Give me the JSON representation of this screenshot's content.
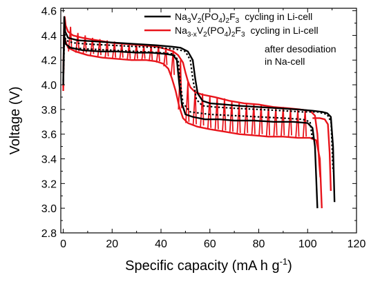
{
  "chart_data": {
    "type": "line",
    "xlabel": "Specific capacity (mA h g",
    "xlabel_sup": "-1",
    "xlabel_tail": ")",
    "ylabel": "Voltage (V)",
    "xlim": [
      -1,
      120
    ],
    "ylim": [
      2.8,
      4.62
    ],
    "x_ticks": [
      0,
      20,
      40,
      60,
      80,
      100,
      120
    ],
    "y_ticks": [
      2.8,
      3.0,
      3.2,
      3.4,
      3.6,
      3.8,
      4.0,
      4.2,
      4.4,
      4.6
    ],
    "x_tick_labels": [
      "0",
      "20",
      "40",
      "60",
      "80",
      "100",
      "120"
    ],
    "y_tick_labels": [
      "2.8",
      "3.0",
      "3.2",
      "3.4",
      "3.6",
      "3.8",
      "4.0",
      "4.2",
      "4.4",
      "4.6"
    ],
    "grid": false,
    "legend_position": "top-right",
    "legend": [
      {
        "color": "#000000",
        "formula": [
          {
            "t": "Na",
            "s": null
          },
          {
            "t": "3",
            "s": "sub"
          },
          {
            "t": "V",
            "s": null
          },
          {
            "t": "2",
            "s": "sub"
          },
          {
            "t": "(PO",
            "s": null
          },
          {
            "t": "4",
            "s": "sub"
          },
          {
            "t": ")",
            "s": null
          },
          {
            "t": "2",
            "s": "sub"
          },
          {
            "t": "F",
            "s": null
          },
          {
            "t": "3",
            "s": "sub"
          }
        ],
        "suffix": "cycling in Li-cell"
      },
      {
        "color": "#e8141b",
        "formula": [
          {
            "t": "Na",
            "s": null
          },
          {
            "t": "3-x",
            "s": "sub"
          },
          {
            "t": "V",
            "s": null
          },
          {
            "t": "2",
            "s": "sub"
          },
          {
            "t": "(PO",
            "s": null
          },
          {
            "t": "4",
            "s": "sub"
          },
          {
            "t": ")",
            "s": null
          },
          {
            "t": "2",
            "s": "sub"
          },
          {
            "t": "F",
            "s": null
          },
          {
            "t": "3",
            "s": "sub"
          }
        ],
        "suffix": "cycling in Li-cell",
        "extra_lines": [
          "after desodiation",
          "in Na-cell"
        ]
      }
    ],
    "series": [
      {
        "color": "#e8141b",
        "curves": [
          {
            "style": "solid",
            "points": [
              [
                0,
                3.98
              ],
              [
                0.3,
                4.45
              ],
              [
                0.6,
                4.55
              ],
              [
                1,
                4.48
              ],
              [
                2,
                4.43
              ],
              [
                4,
                4.4
              ],
              [
                8,
                4.38
              ],
              [
                14,
                4.36
              ],
              [
                20,
                4.34
              ],
              [
                26,
                4.33
              ],
              [
                32,
                4.32
              ],
              [
                38,
                4.31
              ],
              [
                42,
                4.29
              ],
              [
                45,
                4.27
              ],
              [
                47,
                4.24
              ],
              [
                49,
                4.18
              ],
              [
                50,
                4.1
              ],
              [
                51,
                4.03
              ],
              [
                52,
                3.98
              ],
              [
                54,
                3.94
              ],
              [
                57,
                3.92
              ],
              [
                62,
                3.9
              ],
              [
                68,
                3.87
              ],
              [
                74,
                3.85
              ],
              [
                80,
                3.84
              ],
              [
                86,
                3.82
              ],
              [
                92,
                3.81
              ],
              [
                97,
                3.8
              ],
              [
                101,
                3.79
              ],
              [
                103,
                3.75
              ],
              [
                104,
                3.6
              ],
              [
                104.8,
                3.35
              ],
              [
                105.2,
                3.25
              ]
            ]
          },
          {
            "style": "solid",
            "points": [
              [
                0,
                3.95
              ],
              [
                0.3,
                4.4
              ],
              [
                1,
                4.35
              ],
              [
                2,
                4.3
              ],
              [
                5,
                4.27
              ],
              [
                10,
                4.24
              ],
              [
                16,
                4.22
              ],
              [
                22,
                4.21
              ],
              [
                28,
                4.2
              ],
              [
                34,
                4.2
              ],
              [
                38,
                4.19
              ],
              [
                41,
                4.17
              ],
              [
                43,
                4.13
              ],
              [
                44.5,
                4.05
              ],
              [
                46,
                3.95
              ],
              [
                47.5,
                3.82
              ],
              [
                49,
                3.73
              ],
              [
                51,
                3.69
              ],
              [
                55,
                3.66
              ],
              [
                60,
                3.64
              ],
              [
                66,
                3.62
              ],
              [
                72,
                3.6
              ],
              [
                78,
                3.59
              ],
              [
                84,
                3.58
              ],
              [
                90,
                3.58
              ],
              [
                96,
                3.57
              ],
              [
                101,
                3.57
              ],
              [
                103.5,
                3.55
              ],
              [
                105,
                3.4
              ],
              [
                105.8,
                3.0
              ]
            ]
          },
          {
            "style": "solid",
            "points": [
              [
                102,
                3.73
              ],
              [
                105,
                3.73
              ],
              [
                107,
                3.72
              ],
              [
                108.3,
                3.68
              ],
              [
                109,
                3.45
              ],
              [
                109.5,
                3.14
              ]
            ]
          }
        ],
        "spikes": {
          "lower": [
            [
              3,
              4.27,
              4.47
            ],
            [
              6,
              4.26,
              4.42
            ],
            [
              9,
              4.25,
              4.4
            ],
            [
              12,
              4.24,
              4.38
            ],
            [
              15,
              4.23,
              4.37
            ],
            [
              18,
              4.22,
              4.36
            ],
            [
              21,
              4.21,
              4.35
            ],
            [
              24,
              4.21,
              4.34
            ],
            [
              27,
              4.2,
              4.33
            ],
            [
              30,
              4.2,
              4.33
            ],
            [
              33,
              4.2,
              4.32
            ],
            [
              36,
              4.19,
              4.32
            ],
            [
              39,
              4.18,
              4.31
            ],
            [
              42,
              4.15,
              4.3
            ],
            [
              45,
              4.07,
              4.28
            ],
            [
              48,
              3.8,
              4.2
            ],
            [
              51,
              3.69,
              4.02
            ],
            [
              54,
              3.67,
              3.96
            ],
            [
              57,
              3.66,
              3.93
            ],
            [
              60,
              3.64,
              3.91
            ],
            [
              63,
              3.63,
              3.9
            ],
            [
              66,
              3.62,
              3.89
            ],
            [
              69,
              3.61,
              3.87
            ],
            [
              72,
              3.6,
              3.86
            ],
            [
              75,
              3.6,
              3.85
            ],
            [
              78,
              3.59,
              3.85
            ],
            [
              81,
              3.59,
              3.84
            ],
            [
              84,
              3.58,
              3.83
            ],
            [
              87,
              3.58,
              3.82
            ],
            [
              90,
              3.58,
              3.82
            ],
            [
              93,
              3.58,
              3.81
            ],
            [
              96,
              3.57,
              3.8
            ],
            [
              99,
              3.57,
              3.8
            ]
          ]
        }
      },
      {
        "color": "#000000",
        "curves": [
          {
            "style": "solid",
            "points": [
              [
                0,
                4.03
              ],
              [
                0.4,
                4.55
              ],
              [
                0.8,
                4.43
              ],
              [
                2,
                4.38
              ],
              [
                6,
                4.36
              ],
              [
                14,
                4.35
              ],
              [
                22,
                4.34
              ],
              [
                30,
                4.33
              ],
              [
                38,
                4.32
              ],
              [
                44,
                4.31
              ],
              [
                48,
                4.3
              ],
              [
                51,
                4.27
              ],
              [
                53,
                4.2
              ],
              [
                54,
                4.05
              ],
              [
                55,
                3.93
              ],
              [
                57,
                3.87
              ],
              [
                60,
                3.85
              ],
              [
                66,
                3.84
              ],
              [
                72,
                3.83
              ],
              [
                80,
                3.82
              ],
              [
                88,
                3.81
              ],
              [
                96,
                3.8
              ],
              [
                102,
                3.79
              ],
              [
                106,
                3.78
              ],
              [
                108,
                3.77
              ],
              [
                109.5,
                3.74
              ],
              [
                110.4,
                3.5
              ],
              [
                111,
                3.05
              ]
            ]
          },
          {
            "style": "dotted",
            "points": [
              [
                0,
                4.0
              ],
              [
                0.5,
                4.42
              ],
              [
                1,
                4.36
              ],
              [
                4,
                4.34
              ],
              [
                10,
                4.33
              ],
              [
                20,
                4.32
              ],
              [
                30,
                4.31
              ],
              [
                40,
                4.3
              ],
              [
                46,
                4.29
              ],
              [
                50,
                4.27
              ],
              [
                52,
                4.2
              ],
              [
                53,
                4.05
              ],
              [
                54.5,
                3.88
              ],
              [
                57,
                3.83
              ],
              [
                62,
                3.82
              ],
              [
                70,
                3.81
              ],
              [
                80,
                3.8
              ],
              [
                90,
                3.79
              ],
              [
                98,
                3.78
              ],
              [
                104,
                3.78
              ],
              [
                108,
                3.76
              ],
              [
                109.6,
                3.7
              ],
              [
                110.4,
                3.3
              ]
            ]
          },
          {
            "style": "solid",
            "points": [
              [
                0,
                4.0
              ],
              [
                0.4,
                4.4
              ],
              [
                1,
                4.33
              ],
              [
                3,
                4.3
              ],
              [
                8,
                4.28
              ],
              [
                15,
                4.27
              ],
              [
                22,
                4.27
              ],
              [
                30,
                4.26
              ],
              [
                36,
                4.26
              ],
              [
                42,
                4.25
              ],
              [
                45,
                4.24
              ],
              [
                46.5,
                4.2
              ],
              [
                47.5,
                4.0
              ],
              [
                48.5,
                3.85
              ],
              [
                50,
                3.76
              ],
              [
                53,
                3.74
              ],
              [
                58,
                3.72
              ],
              [
                64,
                3.72
              ],
              [
                70,
                3.71
              ],
              [
                78,
                3.71
              ],
              [
                86,
                3.7
              ],
              [
                94,
                3.7
              ],
              [
                100,
                3.69
              ],
              [
                102,
                3.65
              ],
              [
                103,
                3.5
              ],
              [
                104,
                3.0
              ]
            ]
          },
          {
            "style": "dotted",
            "points": [
              [
                2,
                4.3
              ],
              [
                10,
                4.29
              ],
              [
                20,
                4.28
              ],
              [
                30,
                4.27
              ],
              [
                40,
                4.26
              ],
              [
                45,
                4.25
              ],
              [
                47,
                4.2
              ],
              [
                48,
                4.0
              ],
              [
                49,
                3.85
              ],
              [
                52,
                3.78
              ],
              [
                60,
                3.76
              ],
              [
                70,
                3.75
              ],
              [
                80,
                3.74
              ],
              [
                90,
                3.73
              ],
              [
                98,
                3.72
              ],
              [
                101,
                3.7
              ],
              [
                102,
                3.55
              ]
            ]
          }
        ]
      }
    ]
  }
}
